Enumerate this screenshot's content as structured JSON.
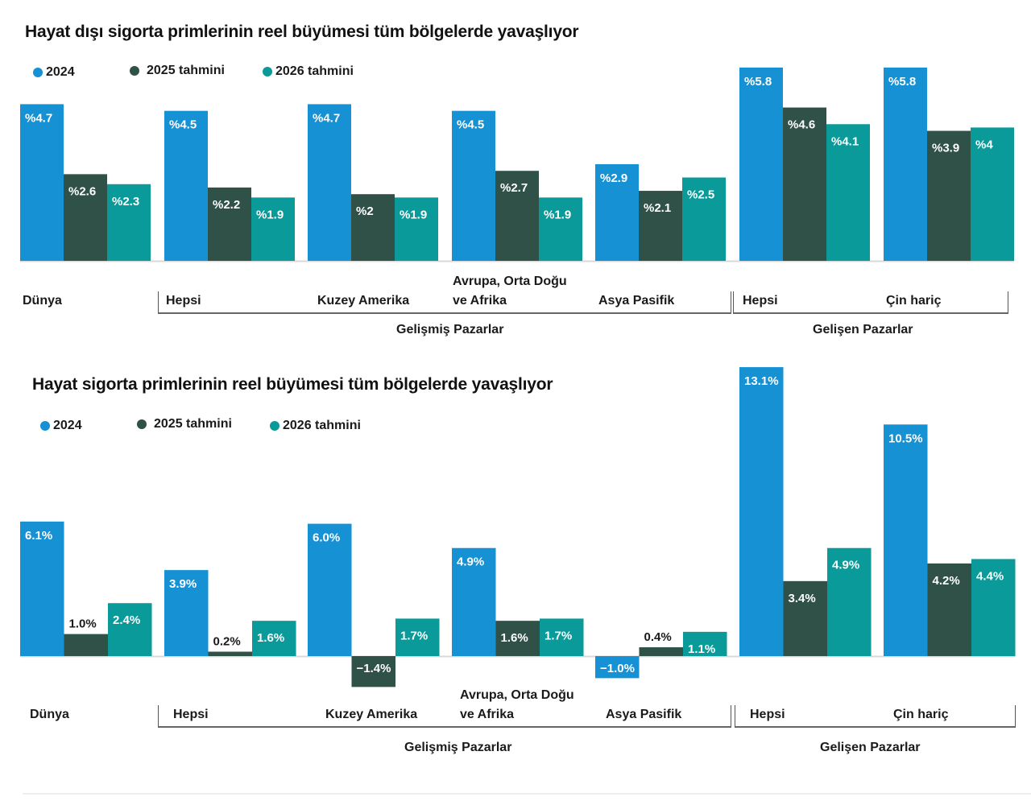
{
  "colors": {
    "s2024": "#1691d4",
    "s2025": "#2f5147",
    "s2026": "#0a9a99",
    "baseline": "#d8d8d8"
  },
  "chart_data": [
    {
      "type": "bar",
      "title": "Hayat dışı sigorta primlerinin reel büyümesi tüm bölgelerde yavaşlıyor",
      "xlabel": "",
      "ylabel": "",
      "label_format": "prefix",
      "categories": [
        "Dünya",
        "Hepsi",
        "Kuzey Amerika",
        "Avrupa, Orta Doğu ve Afrika",
        "Asya Pasifik",
        "Hepsi",
        "Çin hariç"
      ],
      "category_lines": [
        [
          "Dünya"
        ],
        [
          "Hepsi"
        ],
        [
          "Kuzey Amerika"
        ],
        [
          "Avrupa, Orta Doğu",
          "ve Afrika"
        ],
        [
          "Asya Pasifik"
        ],
        [
          "Hepsi"
        ],
        [
          "Çin hariç"
        ]
      ],
      "groups": [
        {
          "label": "Gelişmiş Pazarlar",
          "categories": [
            "Hepsi",
            "Kuzey Amerika",
            "Avrupa, Orta Doğu ve Afrika",
            "Asya Pasifik"
          ]
        },
        {
          "label": "Gelişen Pazarlar",
          "categories": [
            "Hepsi",
            "Çin hariç"
          ]
        }
      ],
      "series": [
        {
          "name": "2024",
          "color_key": "s2024",
          "values": [
            4.7,
            4.5,
            4.7,
            4.5,
            2.9,
            5.8,
            5.8
          ],
          "labels": [
            "%4.7",
            "%4.5",
            "%4.7",
            "%4.5",
            "%2.9",
            "%5.8",
            "%5.8"
          ]
        },
        {
          "name": "2025 tahmini",
          "color_key": "s2025",
          "values": [
            2.6,
            2.2,
            2.0,
            2.7,
            2.1,
            4.6,
            3.9
          ],
          "labels": [
            "%2.6",
            "%2.2",
            "%2",
            "%2.7",
            "%2.1",
            "%4.6",
            "%3.9"
          ]
        },
        {
          "name": "2026 tahmini",
          "color_key": "s2026",
          "values": [
            2.3,
            1.9,
            1.9,
            1.9,
            2.5,
            4.1,
            4.0
          ],
          "labels": [
            "%2.3",
            "%1.9",
            "%1.9",
            "%1.9",
            "%2.5",
            "%4.1",
            "%4"
          ]
        }
      ],
      "unit": "%",
      "ylim": [
        0,
        5.8
      ],
      "grid": false,
      "legend": "top-left"
    },
    {
      "type": "bar",
      "title": "Hayat sigorta primlerinin reel büyümesi tüm bölgelerde yavaşlıyor",
      "xlabel": "",
      "ylabel": "",
      "label_format": "suffix",
      "categories": [
        "Dünya",
        "Hepsi",
        "Kuzey Amerika",
        "Avrupa, Orta Doğu ve Afrika",
        "Asya Pasifik",
        "Hepsi",
        "Çin hariç"
      ],
      "category_lines": [
        [
          "Dünya"
        ],
        [
          "Hepsi"
        ],
        [
          "Kuzey Amerika"
        ],
        [
          "Avrupa, Orta Doğu",
          "ve Afrika"
        ],
        [
          "Asya Pasifik"
        ],
        [
          "Hepsi"
        ],
        [
          "Çin hariç"
        ]
      ],
      "groups": [
        {
          "label": "Gelişmiş Pazarlar",
          "categories": [
            "Hepsi",
            "Kuzey Amerika",
            "Avrupa, Orta Doğu ve Afrika",
            "Asya Pasifik"
          ]
        },
        {
          "label": "Gelişen Pazarlar",
          "categories": [
            "Hepsi",
            "Çin hariç"
          ]
        }
      ],
      "series": [
        {
          "name": "2024",
          "color_key": "s2024",
          "values": [
            6.1,
            3.9,
            6.0,
            4.9,
            -1.0,
            13.1,
            10.5
          ],
          "labels": [
            "6.1%",
            "3.9%",
            "6.0%",
            "4.9%",
            "−1.0%",
            "13.1%",
            "10.5%"
          ]
        },
        {
          "name": "2025 tahmini",
          "color_key": "s2025",
          "values": [
            1.0,
            0.2,
            -1.4,
            1.6,
            0.4,
            3.4,
            4.2
          ],
          "labels": [
            "1.0%",
            "0.2%",
            "−1.4%",
            "1.6%",
            "0.4%",
            "3.4%",
            "4.2%"
          ]
        },
        {
          "name": "2026 tahmini",
          "color_key": "s2026",
          "values": [
            2.4,
            1.6,
            1.7,
            1.7,
            1.1,
            4.9,
            4.4
          ],
          "labels": [
            "2.4%",
            "1.6%",
            "1.7%",
            "1.7%",
            "1.1%",
            "4.9%",
            "4.4%"
          ]
        }
      ],
      "unit": "%",
      "ylim": [
        -1.4,
        13.1
      ],
      "grid": false,
      "legend": "top-left"
    }
  ]
}
